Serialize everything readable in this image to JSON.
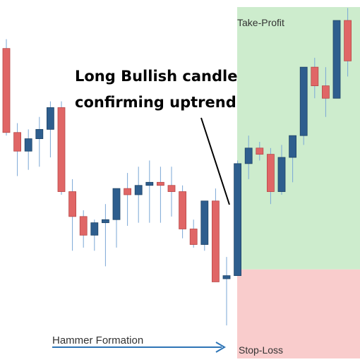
{
  "chart_data": {
    "type": "candlestick",
    "title": "",
    "xlabel": "",
    "ylabel": "",
    "ylim": [
      0,
      100
    ],
    "grid": false,
    "up_color": "#2e5e8e",
    "down_color": "#e06666",
    "zones": {
      "take_profit": {
        "label": "Take-Profit",
        "color": "#cdeccd",
        "from": 20,
        "to": 100
      },
      "stop_loss": {
        "label": "Stop-Loss",
        "color": "#f9cccc",
        "from": 0,
        "to": 20
      }
    },
    "annotation": {
      "line1": "Long Bullish candle",
      "line2": "confirming uptrend"
    },
    "pattern_label": "Hammer Formation",
    "candles": [
      {
        "o": 91,
        "h": 94,
        "l": 63,
        "c": 64
      },
      {
        "o": 64,
        "h": 67,
        "l": 50,
        "c": 58
      },
      {
        "o": 58,
        "h": 65,
        "l": 52,
        "c": 62
      },
      {
        "o": 62,
        "h": 69,
        "l": 53,
        "c": 65
      },
      {
        "o": 65,
        "h": 74,
        "l": 56,
        "c": 72
      },
      {
        "o": 72,
        "h": 74,
        "l": 44,
        "c": 45
      },
      {
        "o": 45,
        "h": 49,
        "l": 26,
        "c": 37
      },
      {
        "o": 37,
        "h": 39,
        "l": 27,
        "c": 31
      },
      {
        "o": 31,
        "h": 36,
        "l": 26,
        "c": 35
      },
      {
        "o": 35,
        "h": 41,
        "l": 21,
        "c": 36
      },
      {
        "o": 36,
        "h": 46,
        "l": 27,
        "c": 46
      },
      {
        "o": 46,
        "h": 51,
        "l": 34,
        "c": 44
      },
      {
        "o": 44,
        "h": 53,
        "l": 35,
        "c": 47
      },
      {
        "o": 47,
        "h": 55,
        "l": 35,
        "c": 48
      },
      {
        "o": 48,
        "h": 53,
        "l": 35,
        "c": 47
      },
      {
        "o": 47,
        "h": 53,
        "l": 37,
        "c": 45
      },
      {
        "o": 45,
        "h": 47,
        "l": 30,
        "c": 33
      },
      {
        "o": 33,
        "h": 36,
        "l": 27,
        "c": 28
      },
      {
        "o": 28,
        "h": 42,
        "l": 26,
        "c": 42
      },
      {
        "o": 42,
        "h": 46,
        "l": 16,
        "c": 16
      },
      {
        "o": 17,
        "h": 24,
        "l": 2,
        "c": 18
      },
      {
        "o": 18,
        "h": 55,
        "l": 18,
        "c": 54
      },
      {
        "o": 54,
        "h": 63,
        "l": 49,
        "c": 59
      },
      {
        "o": 59,
        "h": 61,
        "l": 55,
        "c": 57
      },
      {
        "o": 57,
        "h": 59,
        "l": 41,
        "c": 45
      },
      {
        "o": 45,
        "h": 60,
        "l": 44,
        "c": 56
      },
      {
        "o": 56,
        "h": 63,
        "l": 48,
        "c": 63
      },
      {
        "o": 63,
        "h": 85,
        "l": 60,
        "c": 85
      },
      {
        "o": 85,
        "h": 88,
        "l": 75,
        "c": 79
      },
      {
        "o": 79,
        "h": 85,
        "l": 69,
        "c": 75
      },
      {
        "o": 75,
        "h": 100,
        "l": 75,
        "c": 100
      },
      {
        "o": 100,
        "h": 104,
        "l": 82,
        "c": 87
      }
    ]
  }
}
